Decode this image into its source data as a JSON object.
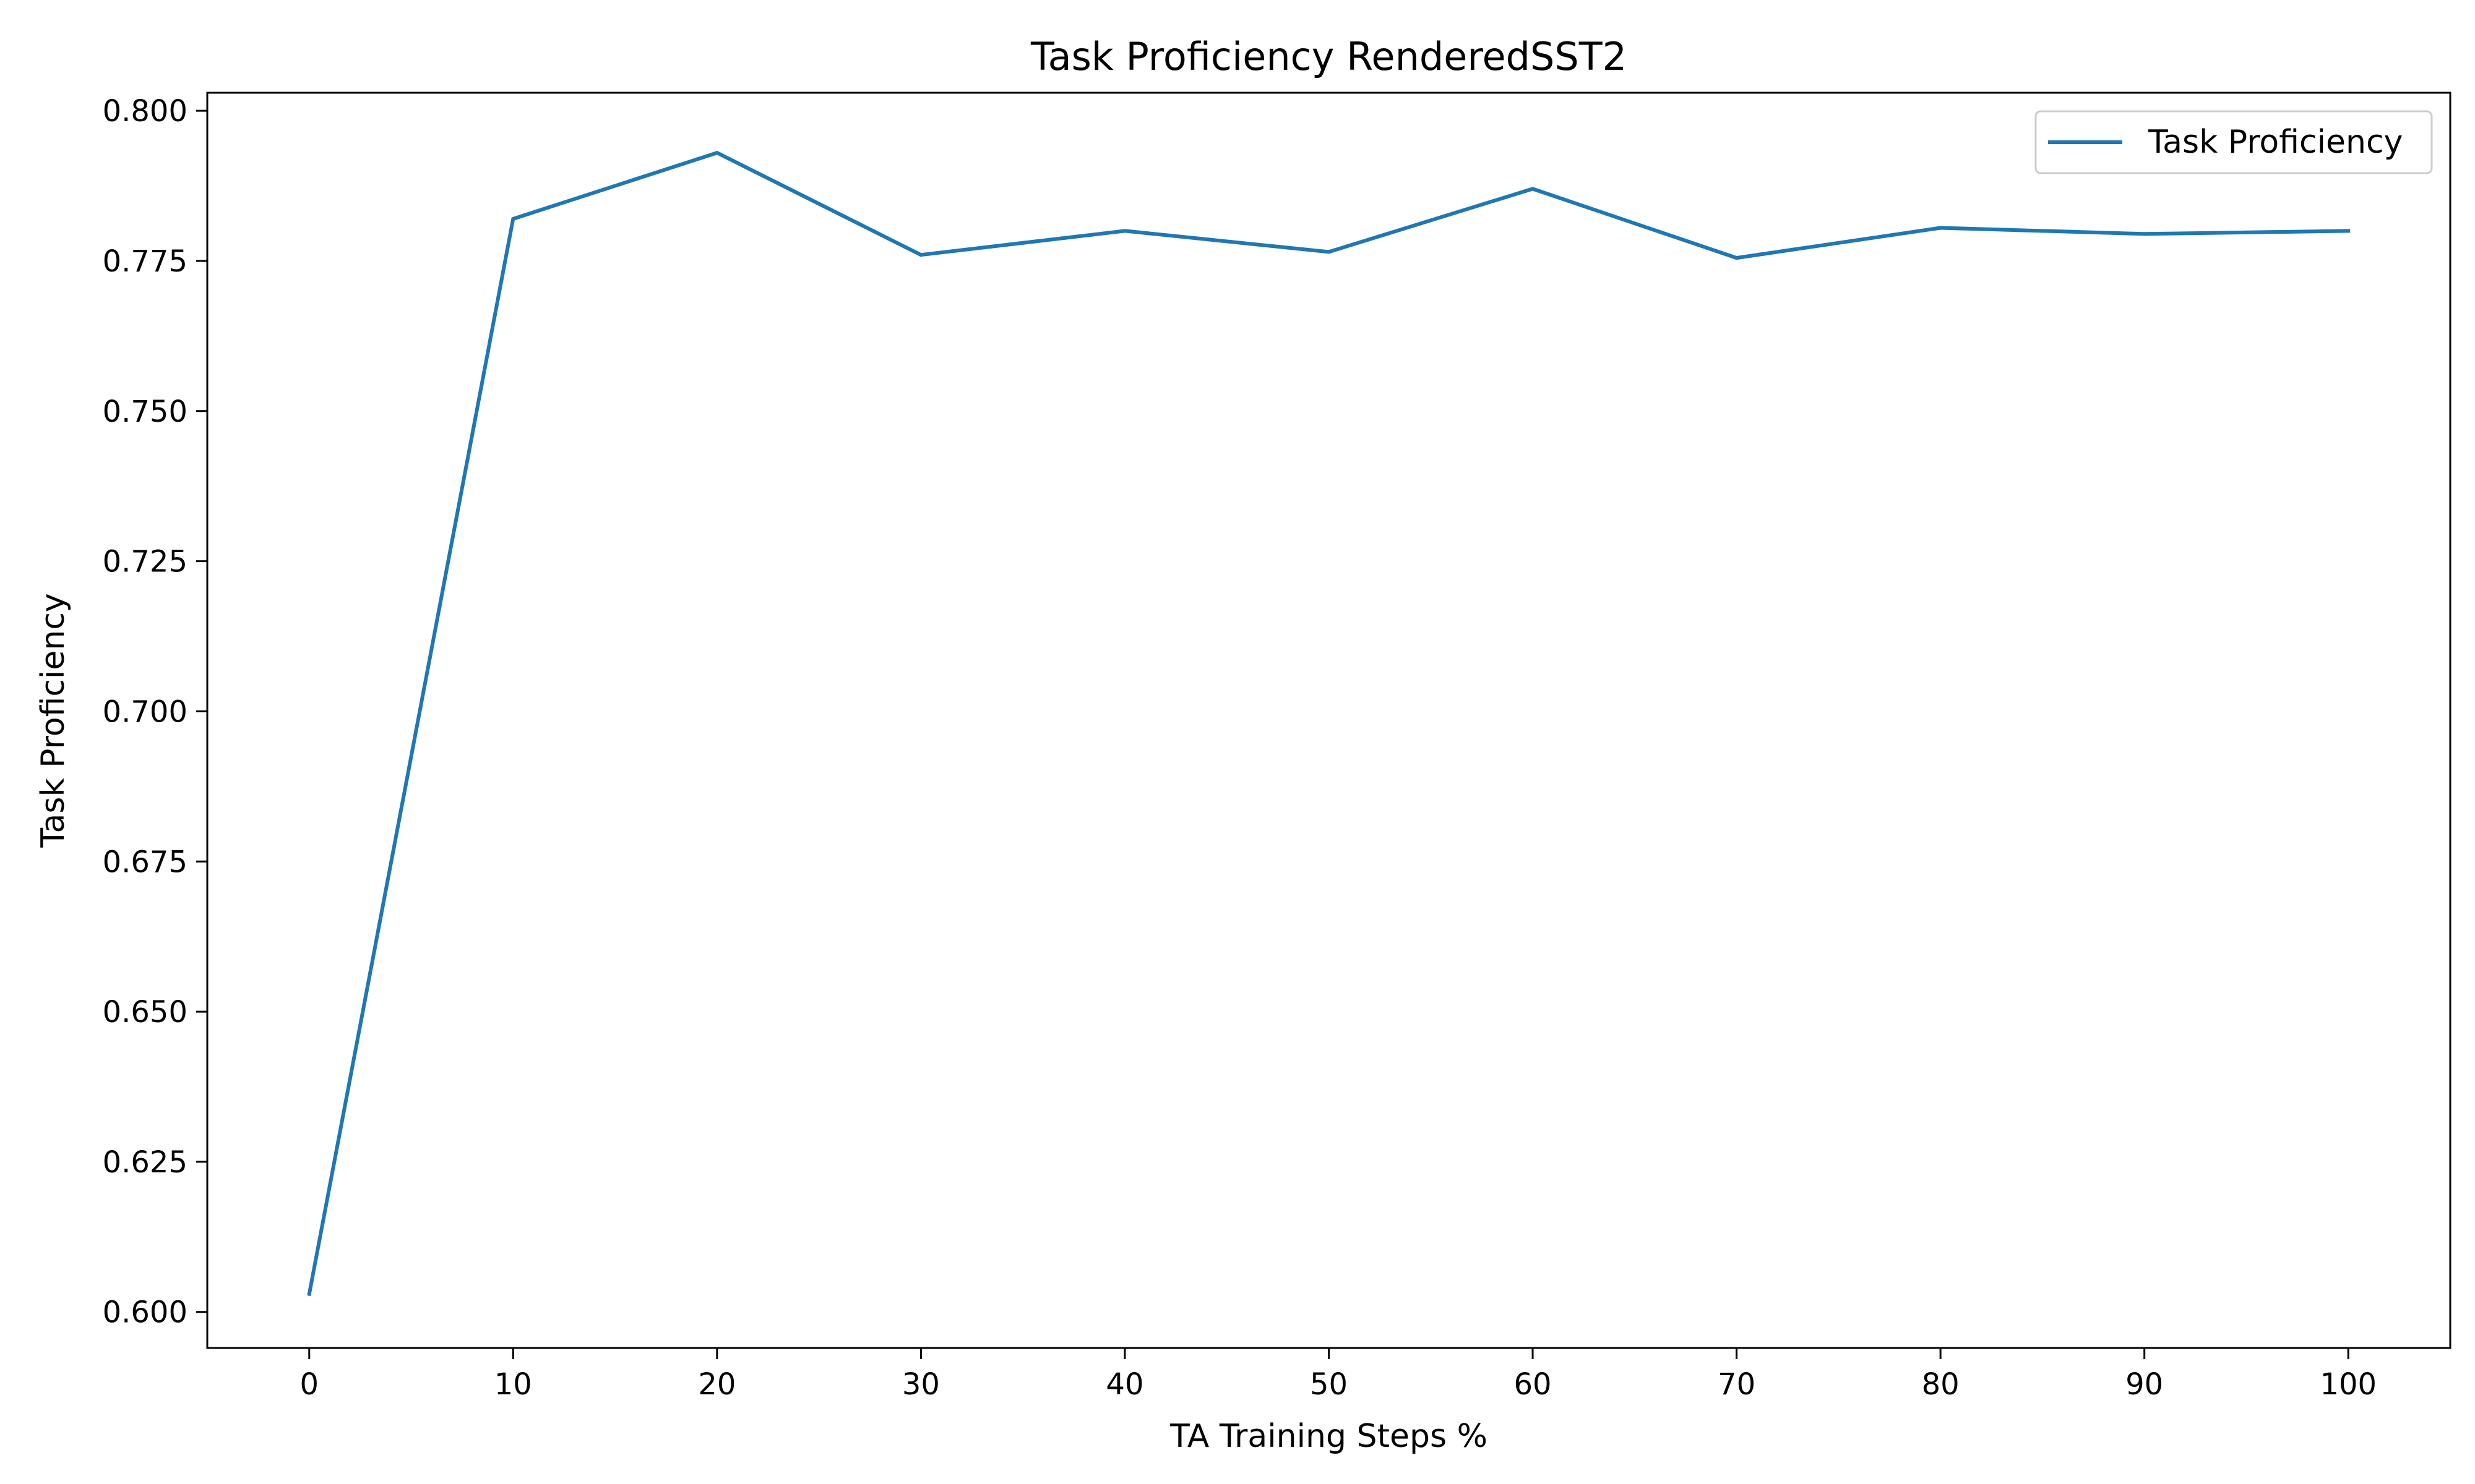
{
  "chart_data": {
    "type": "line",
    "title": "Task Proficiency RenderedSST2",
    "xlabel": "TA Training Steps %",
    "ylabel": "Task Proficiency",
    "x": [
      0,
      10,
      20,
      30,
      40,
      50,
      60,
      70,
      80,
      90,
      100
    ],
    "series": [
      {
        "name": "Task Proficiency",
        "color": "#1f77b4",
        "values": [
          0.603,
          0.782,
          0.793,
          0.776,
          0.78,
          0.7765,
          0.787,
          0.7755,
          0.7805,
          0.7795,
          0.78
        ]
      }
    ],
    "xticks": [
      "0",
      "10",
      "20",
      "30",
      "40",
      "50",
      "60",
      "70",
      "80",
      "90",
      "100"
    ],
    "yticks": [
      "0.600",
      "0.625",
      "0.650",
      "0.675",
      "0.700",
      "0.725",
      "0.750",
      "0.775",
      "0.800"
    ],
    "xlim": [
      -5,
      105
    ],
    "ylim": [
      0.594,
      0.803
    ],
    "grid": false,
    "legend_position": "top-right"
  }
}
